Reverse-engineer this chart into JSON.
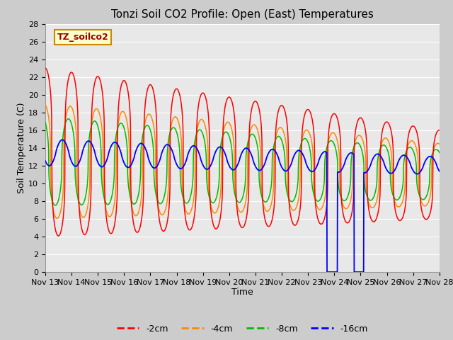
{
  "title": "Tonzi Soil CO2 Profile: Open (East) Temperatures",
  "xlabel": "Time",
  "ylabel": "Soil Temperature (C)",
  "ylim": [
    0,
    28
  ],
  "colors": {
    "-2cm": "#ff0000",
    "-4cm": "#ff8800",
    "-8cm": "#00bb00",
    "-16cm": "#0000ff"
  },
  "legend_label": "TZ_soilco2",
  "fig_bg": "#cccccc",
  "plot_bg": "#e8e8e8",
  "grid_color": "#ffffff",
  "title_fontsize": 11,
  "axis_fontsize": 9,
  "tick_fontsize": 8,
  "xtick_labels": [
    "Nov 13",
    "Nov 14",
    "Nov 15",
    "Nov 16",
    "Nov 17",
    "Nov 18",
    "Nov 19",
    "Nov 20",
    "Nov 21",
    "Nov 22",
    "Nov 23",
    "Nov 24",
    "Nov 25",
    "Nov 26",
    "Nov 27",
    "Nov 28"
  ]
}
